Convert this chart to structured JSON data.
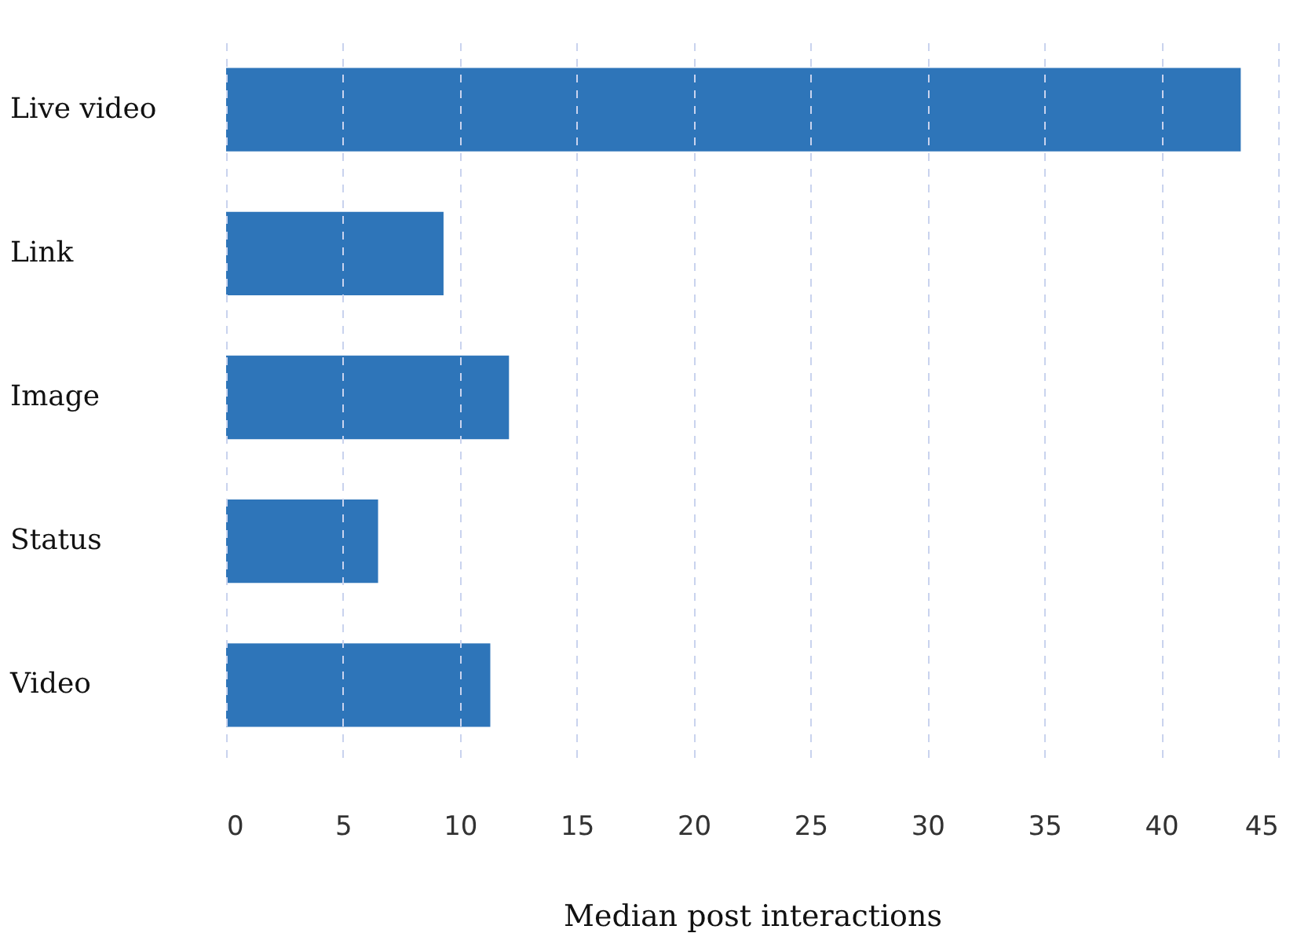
{
  "chart_data": {
    "type": "bar",
    "orientation": "horizontal",
    "xlabel": "Median post interactions",
    "categories": [
      "Live video",
      "Link",
      "Image",
      "Status",
      "Video"
    ],
    "values": [
      43.4,
      9.3,
      12.1,
      6.5,
      11.3
    ],
    "color": "#2e75b9",
    "xlim": [
      0,
      45
    ],
    "xticks": [
      0,
      5,
      10,
      15,
      20,
      25,
      30,
      35,
      40,
      45
    ],
    "grid": "x"
  }
}
